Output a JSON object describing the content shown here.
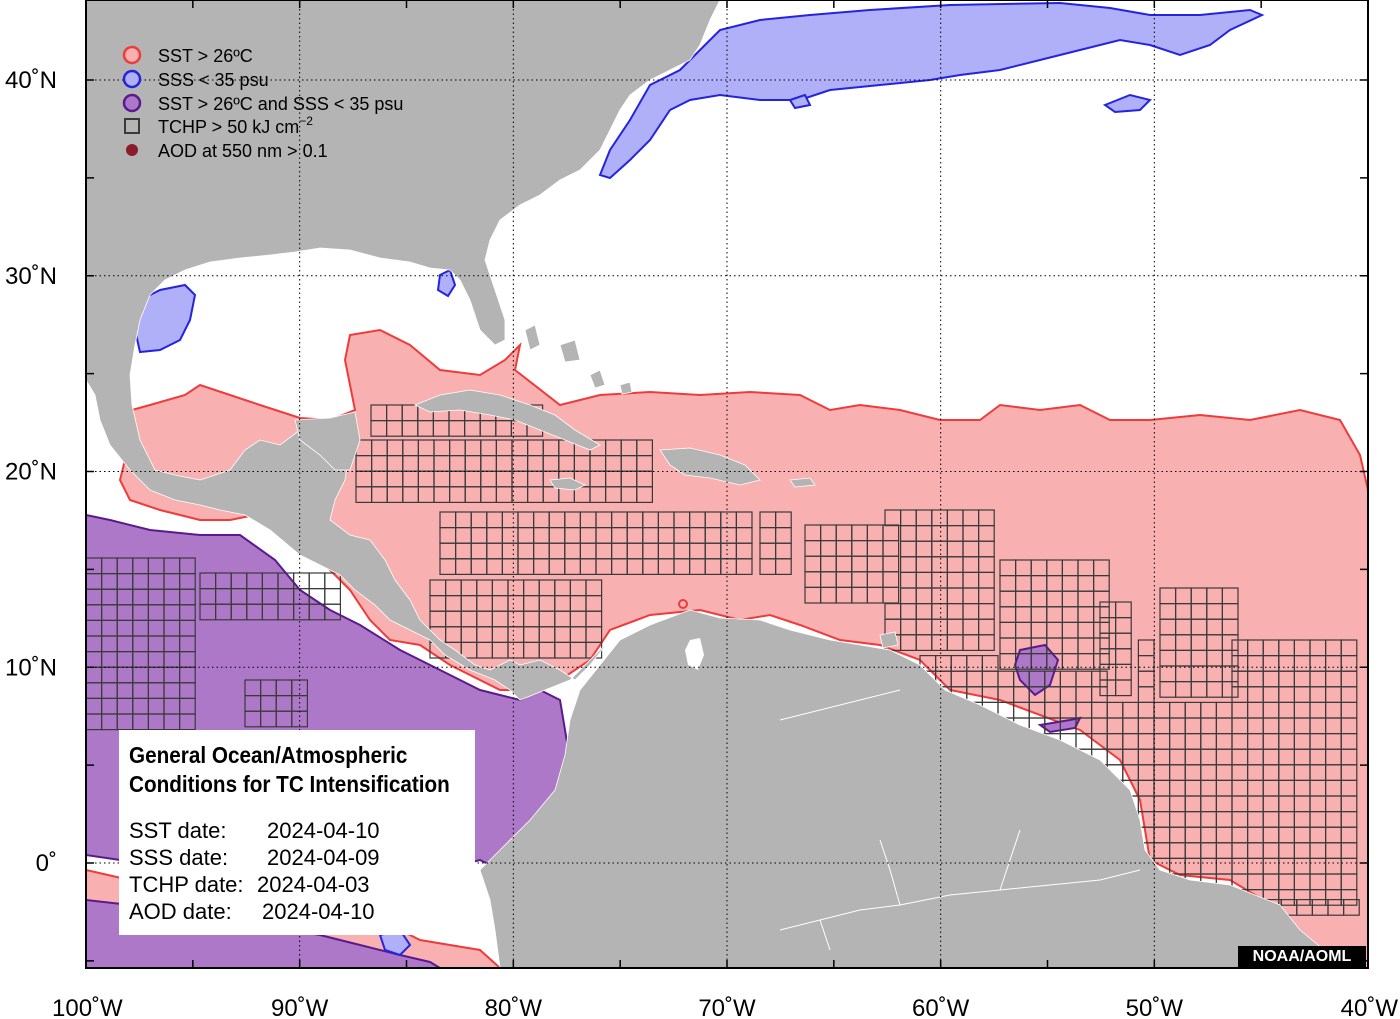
{
  "colors": {
    "land": "#b4b4b4",
    "ocean": "#ffffff",
    "sst_fill": "#f8b0b0",
    "sst_edge": "#ee3c3c",
    "sss_fill": "#b0b0f8",
    "sss_edge": "#2424e0",
    "both_fill": "#ad78c8",
    "both_edge": "#5a1a8e",
    "tchp_edge": "#3a3a3a",
    "aod": "#8a1c2c"
  },
  "legend": [
    {
      "symbol": "sst-circle",
      "label": "SST > 26ºC"
    },
    {
      "symbol": "sss-circle",
      "label": "SSS < 35 psu"
    },
    {
      "symbol": "both-circle",
      "label": "SST > 26ºC and SSS < 35 psu"
    },
    {
      "symbol": "tchp-square",
      "label": "TCHP > 50 kJ cm",
      "sup": "−2"
    },
    {
      "symbol": "aod-dot",
      "label": "AOD at 550 nm > 0.1"
    }
  ],
  "lat_labels": [
    {
      "lat": 40,
      "text": "40˚N"
    },
    {
      "lat": 30,
      "text": "30˚N"
    },
    {
      "lat": 20,
      "text": "20˚N"
    },
    {
      "lat": 10,
      "text": "10˚N"
    },
    {
      "lat": 0,
      "text": "0˚"
    }
  ],
  "lon_labels": [
    {
      "lon": -100,
      "text": "100˚W"
    },
    {
      "lon": -90,
      "text": "90˚W"
    },
    {
      "lon": -80,
      "text": "80˚W"
    },
    {
      "lon": -70,
      "text": "70˚W"
    },
    {
      "lon": -60,
      "text": "60˚W"
    },
    {
      "lon": -50,
      "text": "50˚W"
    },
    {
      "lon": -40,
      "text": "40˚W"
    }
  ],
  "info": {
    "title_line1": "General Ocean/Atmospheric",
    "title_line2": "Conditions for TC Intensification",
    "rows": [
      {
        "label": "SST date:",
        "value": "2024-04-10"
      },
      {
        "label": "SSS date:",
        "value": "2024-04-09"
      },
      {
        "label": "TCHP date:",
        "value": "2024-04-03"
      },
      {
        "label": "AOD date:",
        "value": "2024-04-10"
      }
    ]
  },
  "credit": "NOAA/AOML",
  "map_extent": {
    "lon_min": -100,
    "lon_max": -40,
    "lat_min": -5,
    "lat_max": 44
  }
}
